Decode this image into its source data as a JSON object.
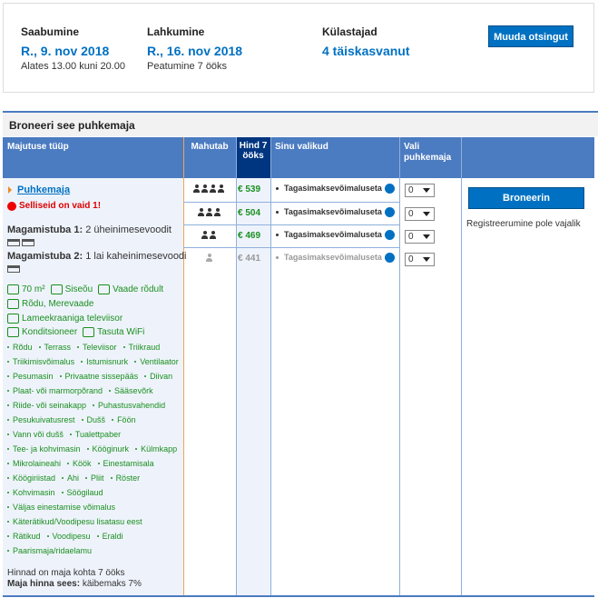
{
  "search": {
    "arrival": {
      "label": "Saabumine",
      "date": "R., 9. nov 2018",
      "note": "Alates 13.00 kuni 20.00"
    },
    "departure": {
      "label": "Lahkumine",
      "date": "R., 16. nov 2018",
      "note": "Peatumine 7 ööks"
    },
    "guests": {
      "label": "Külastajad",
      "value": "4 täiskasvanut"
    },
    "button": "Muuda otsingut"
  },
  "booking": {
    "title": "Broneeri see puhkemaja",
    "headers": [
      "Majutuse tüüp",
      "Mahutab",
      "Hind 7 ööks",
      "Sinu valikud",
      "Vali puhkemaja"
    ],
    "unit": {
      "name": "Puhkemaja",
      "scarcity": "Selliseid on vaid 1!",
      "bedrooms": [
        {
          "label": "Magamistuba 1:",
          "beds": "2 üheinimesevoodit",
          "icons": 2
        },
        {
          "label": "Magamistuba 2:",
          "beds": "1 lai kaheinimesevoodi",
          "icons": 1
        }
      ],
      "highlights": [
        [
          "70 m²",
          "Siseõu",
          "Vaade rõdult"
        ],
        [
          "Rõdu, Merevaade"
        ],
        [
          "Lameekraaniga televiisor"
        ],
        [
          "Konditsioneer",
          "Tasuta WiFi"
        ]
      ],
      "amenities": [
        [
          "Rõdu",
          "Terrass",
          "Televiisor",
          "Triikraud"
        ],
        [
          "Triikimisvõimalus",
          "Istumisnurk",
          "Ventilaator"
        ],
        [
          "Pesumasin",
          "Privaatne sissepääs",
          "Diivan"
        ],
        [
          "Plaat- või marmorpõrand",
          "Sääsevõrk"
        ],
        [
          "Riide- või seinakapp",
          "Puhastusvahendid"
        ],
        [
          "Pesukuivatusrest",
          "Dušš",
          "Föön"
        ],
        [
          "Vann või dušš",
          "Tualettpaber"
        ],
        [
          "Tee- ja kohvimasin",
          "Kööginurk",
          "Külmkapp"
        ],
        [
          "Mikrolaineahi",
          "Köök",
          "Einestamisala"
        ],
        [
          "Köögiriistad",
          "Ahi",
          "Pliit",
          "Röster"
        ],
        [
          "Kohvimasin",
          "Söögilaud"
        ],
        [
          "Väljas einestamise võimalus"
        ],
        [
          "Käterätikud/Voodipesu lisatasu eest"
        ],
        [
          "Rätikud",
          "Voodipesu",
          "Eraldi"
        ],
        [
          "Paarismaja/ridaelamu"
        ]
      ],
      "price_note": "Hinnad on maja kohta 7 ööks",
      "tax_label": "Maja hinna sees:",
      "tax": "käibemaks 7%"
    },
    "rows": [
      {
        "occupancy": 4,
        "price": "€ 539",
        "option": "Tagasimaksevõimaluseta",
        "select": "0",
        "available": true
      },
      {
        "occupancy": 3,
        "price": "€ 504",
        "option": "Tagasimaksevõimaluseta",
        "select": "0",
        "available": true
      },
      {
        "occupancy": 2,
        "price": "€ 469",
        "option": "Tagasimaksevõimaluseta",
        "select": "0",
        "available": true
      },
      {
        "occupancy": 1,
        "price": "€ 441",
        "option": "Tagasimaksevõimaluseta",
        "select": "0",
        "available": false
      }
    ],
    "book_button": "Broneerin",
    "book_note": "Registreerumine pole vajalik"
  }
}
